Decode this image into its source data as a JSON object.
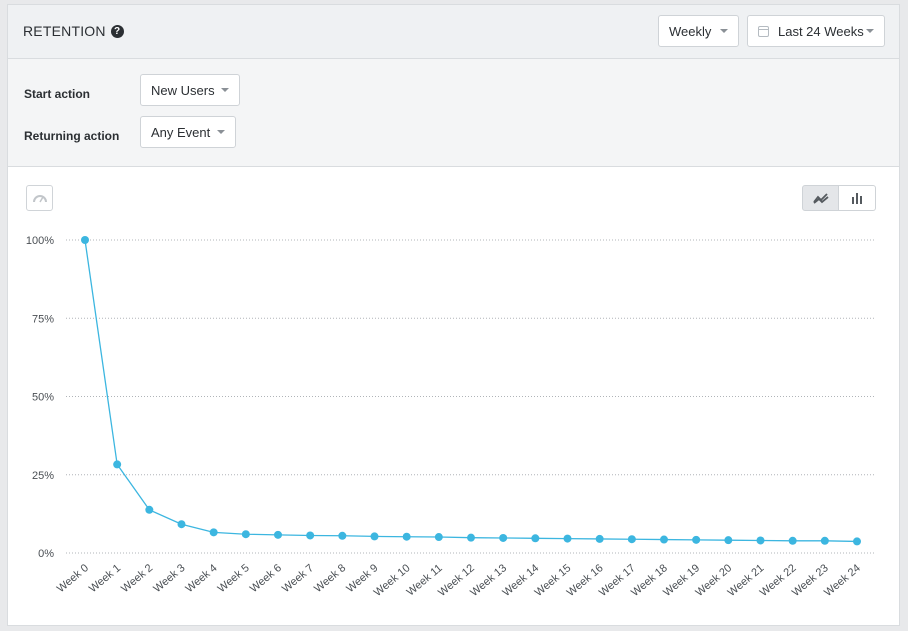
{
  "header": {
    "title": "RETENTION",
    "help_icon": "?"
  },
  "controls": {
    "interval": {
      "value": "Weekly"
    },
    "range": {
      "value": "Last 24 Weeks"
    }
  },
  "settings": {
    "start_action": {
      "label": "Start action",
      "value": "New Users"
    },
    "returning_action": {
      "label": "Returning action",
      "value": "Any Event"
    }
  },
  "icons": {
    "gauge": "gauge-icon",
    "line_chart_toggle": "line-chart-icon",
    "bar_chart_toggle": "bar-chart-icon"
  },
  "colors": {
    "series": "#3cb6e0",
    "grid": "#b0b4b8"
  },
  "chart_data": {
    "type": "line",
    "title": "",
    "xlabel": "",
    "ylabel": "",
    "ylim": [
      0,
      100
    ],
    "yticks": [
      "0%",
      "25%",
      "50%",
      "75%",
      "100%"
    ],
    "grid": true,
    "categories": [
      "Week 0",
      "Week 1",
      "Week 2",
      "Week 3",
      "Week 4",
      "Week 5",
      "Week 6",
      "Week 7",
      "Week 8",
      "Week 9",
      "Week 10",
      "Week 11",
      "Week 12",
      "Week 13",
      "Week 14",
      "Week 15",
      "Week 16",
      "Week 17",
      "Week 18",
      "Week 19",
      "Week 20",
      "Week 21",
      "Week 22",
      "Week 23",
      "Week 24"
    ],
    "series": [
      {
        "values": [
          100,
          28.3,
          13.8,
          9.2,
          6.6,
          6.0,
          5.8,
          5.6,
          5.5,
          5.3,
          5.2,
          5.1,
          4.9,
          4.8,
          4.7,
          4.6,
          4.5,
          4.4,
          4.3,
          4.2,
          4.1,
          4.0,
          3.9,
          3.9,
          3.7
        ]
      }
    ]
  }
}
